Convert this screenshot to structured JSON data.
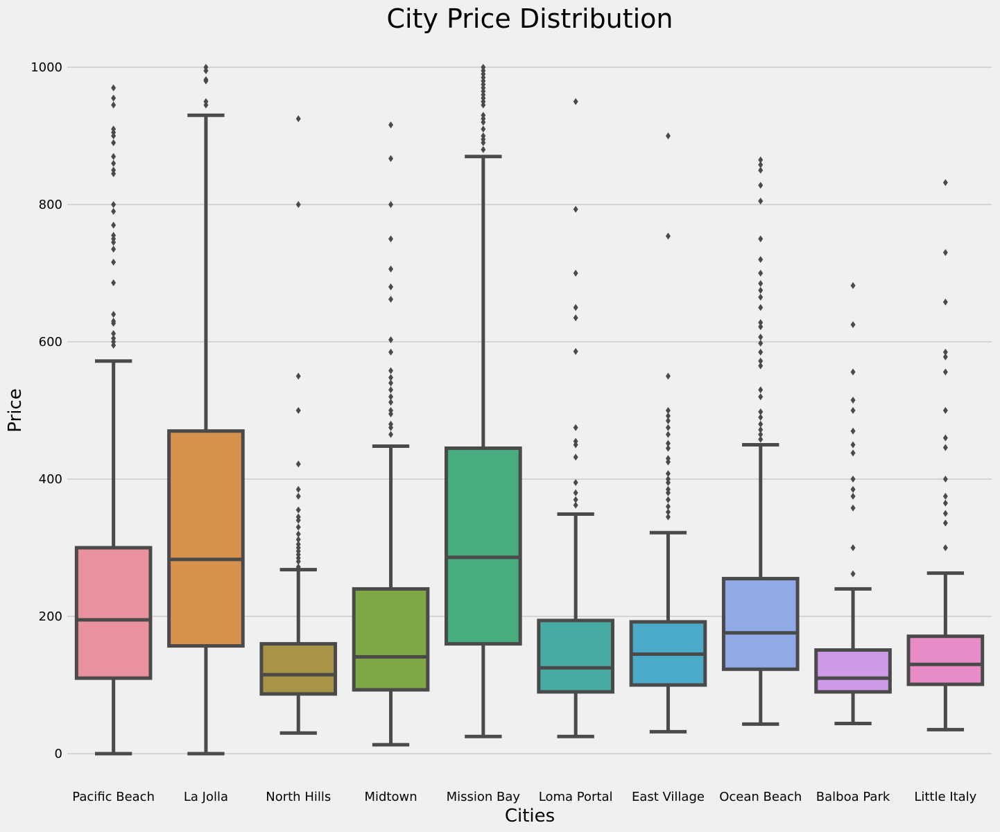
{
  "chart_data": {
    "type": "box",
    "title": "City Price Distribution",
    "xlabel": "Cities",
    "ylabel": "Price",
    "ylim": [
      -40,
      1030
    ],
    "yticks": [
      0,
      200,
      400,
      600,
      800,
      1000
    ],
    "grid": "horizontal",
    "categories": [
      "Pacific Beach",
      "La Jolla",
      "North Hills",
      "Midtown",
      "Mission Bay",
      "Loma Portal",
      "East Village",
      "Ocean Beach",
      "Balboa Park",
      "Little Italy"
    ],
    "boxes": [
      {
        "category": "Pacific Beach",
        "color": "#e8929e",
        "whisker_low": 0,
        "q1": 110,
        "median": 195,
        "q3": 300,
        "whisker_high": 572,
        "outliers": [
          595,
          600,
          605,
          612,
          627,
          630,
          640,
          686,
          716,
          735,
          745,
          750,
          755,
          770,
          790,
          800,
          845,
          850,
          860,
          870,
          890,
          900,
          905,
          910,
          945,
          955,
          970
        ]
      },
      {
        "category": "La Jolla",
        "color": "#d6924c",
        "whisker_low": 0,
        "q1": 157,
        "median": 283,
        "q3": 470,
        "whisker_high": 930,
        "outliers": [
          945,
          950,
          980,
          982,
          995,
          1000
        ]
      },
      {
        "category": "North Hills",
        "color": "#a89444",
        "whisker_low": 30,
        "q1": 87,
        "median": 115,
        "q3": 160,
        "whisker_high": 268,
        "outliers": [
          272,
          280,
          285,
          290,
          295,
          300,
          305,
          312,
          320,
          330,
          340,
          345,
          355,
          375,
          385,
          422,
          500,
          550,
          800,
          925
        ]
      },
      {
        "category": "Midtown",
        "color": "#7ea844",
        "whisker_low": 13,
        "q1": 93,
        "median": 141,
        "q3": 240,
        "whisker_high": 448,
        "outliers": [
          465,
          475,
          480,
          495,
          500,
          512,
          520,
          530,
          540,
          548,
          558,
          585,
          603,
          662,
          680,
          706,
          750,
          800,
          867,
          916
        ]
      },
      {
        "category": "Mission Bay",
        "color": "#48ad7e",
        "whisker_low": 25,
        "q1": 160,
        "median": 286,
        "q3": 445,
        "whisker_high": 870,
        "outliers": [
          880,
          890,
          895,
          900,
          910,
          920,
          925,
          930,
          945,
          950,
          955,
          960,
          965,
          970,
          975,
          980,
          985,
          990,
          995,
          1000
        ]
      },
      {
        "category": "Loma Portal",
        "color": "#49aaa2",
        "whisker_low": 25,
        "q1": 90,
        "median": 125,
        "q3": 194,
        "whisker_high": 349,
        "outliers": [
          362,
          370,
          380,
          395,
          432,
          450,
          455,
          475,
          586,
          635,
          650,
          700,
          793,
          950
        ]
      },
      {
        "category": "East Village",
        "color": "#4aaac8",
        "whisker_low": 32,
        "q1": 100,
        "median": 145,
        "q3": 192,
        "whisker_high": 322,
        "outliers": [
          345,
          352,
          360,
          370,
          380,
          385,
          395,
          400,
          408,
          425,
          430,
          445,
          452,
          465,
          475,
          485,
          492,
          500,
          550,
          754,
          900
        ]
      },
      {
        "category": "Ocean Beach",
        "color": "#90aae8",
        "whisker_low": 43,
        "q1": 123,
        "median": 176,
        "q3": 255,
        "whisker_high": 450,
        "outliers": [
          458,
          465,
          472,
          480,
          490,
          498,
          520,
          530,
          565,
          572,
          585,
          598,
          607,
          622,
          628,
          650,
          665,
          675,
          685,
          700,
          720,
          750,
          805,
          828,
          850,
          858,
          865
        ]
      },
      {
        "category": "Balboa Park",
        "color": "#cc9ae6",
        "whisker_low": 44,
        "q1": 90,
        "median": 110,
        "q3": 151,
        "whisker_high": 240,
        "outliers": [
          262,
          300,
          358,
          375,
          385,
          400,
          438,
          450,
          470,
          500,
          515,
          556,
          625,
          682
        ]
      },
      {
        "category": "Little Italy",
        "color": "#e88cc8",
        "whisker_low": 35,
        "q1": 101,
        "median": 130,
        "q3": 171,
        "whisker_high": 263,
        "outliers": [
          300,
          336,
          350,
          365,
          375,
          400,
          446,
          460,
          500,
          556,
          578,
          585,
          658,
          730,
          832
        ]
      }
    ]
  }
}
